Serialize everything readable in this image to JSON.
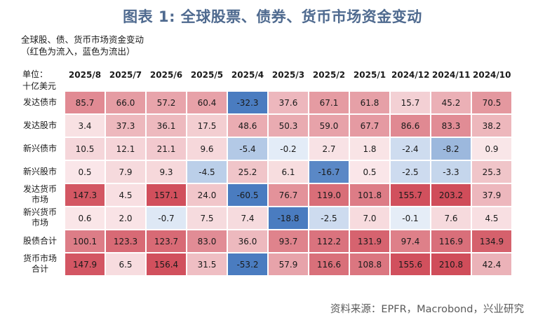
{
  "title": "图表 1:  全球股票、债券、货币市场资金变动",
  "subtitle_lines": [
    "全球股、债、货币市场资金变动",
    "（红色为流入，蓝色为流出）"
  ],
  "unit_lines": [
    "单位：",
    "十亿美元"
  ],
  "source": "资料来源：EPFR，Macrobond，兴业研究",
  "colors": {
    "inflow_strong": "#d04d5a",
    "inflow_light": "#fae8ea",
    "outflow_strong": "#4a7cc0",
    "outflow_light": "#e6eef8"
  },
  "chart_data": {
    "type": "table",
    "columns": [
      "2025/8",
      "2025/7",
      "2025/6",
      "2025/5",
      "2025/4",
      "2025/3",
      "2025/2",
      "2025/1",
      "2024/12",
      "2024/11",
      "2024/10"
    ],
    "rows": [
      {
        "label": [
          "发达债市"
        ],
        "values": [
          "85.7",
          "66.0",
          "57.2",
          "60.4",
          "-32.3",
          "37.6",
          "67.1",
          "61.8",
          "15.7",
          "45.2",
          "70.5"
        ]
      },
      {
        "label": [
          "发达股市"
        ],
        "values": [
          "3.4",
          "37.3",
          "36.1",
          "17.5",
          "48.6",
          "50.3",
          "59.0",
          "67.7",
          "86.6",
          "83.3",
          "38.2"
        ]
      },
      {
        "label": [
          "新兴债市"
        ],
        "values": [
          "10.5",
          "12.1",
          "21.1",
          "9.6",
          "-5.4",
          "-0.2",
          "2.7",
          "1.8",
          "-2.4",
          "-8.2",
          "0.9"
        ]
      },
      {
        "label": [
          "新兴股市"
        ],
        "values": [
          "0.5",
          "7.9",
          "9.3",
          "-4.5",
          "25.2",
          "6.1",
          "-16.7",
          "0.5",
          "-2.5",
          "-3.3",
          "25.3"
        ]
      },
      {
        "label": [
          "发达货币",
          "市场"
        ],
        "values": [
          "147.3",
          "4.5",
          "157.1",
          "24.0",
          "-60.5",
          "76.7",
          "119.0",
          "101.8",
          "155.7",
          "203.2",
          "37.9"
        ]
      },
      {
        "label": [
          "新兴货币",
          "市场"
        ],
        "values": [
          "0.6",
          "2.0",
          "-0.7",
          "7.5",
          "7.4",
          "-18.8",
          "-2.5",
          "7.0",
          "-0.1",
          "7.6",
          "4.5"
        ]
      },
      {
        "label": [
          "股债合计"
        ],
        "values": [
          "100.1",
          "123.3",
          "123.7",
          "83.0",
          "36.0",
          "93.7",
          "112.2",
          "131.9",
          "97.4",
          "116.9",
          "134.9"
        ]
      },
      {
        "label": [
          "货币市场",
          "合计"
        ],
        "values": [
          "147.9",
          "6.5",
          "156.4",
          "31.5",
          "-53.2",
          "57.9",
          "116.6",
          "108.8",
          "155.6",
          "210.8",
          "42.4"
        ]
      }
    ]
  }
}
